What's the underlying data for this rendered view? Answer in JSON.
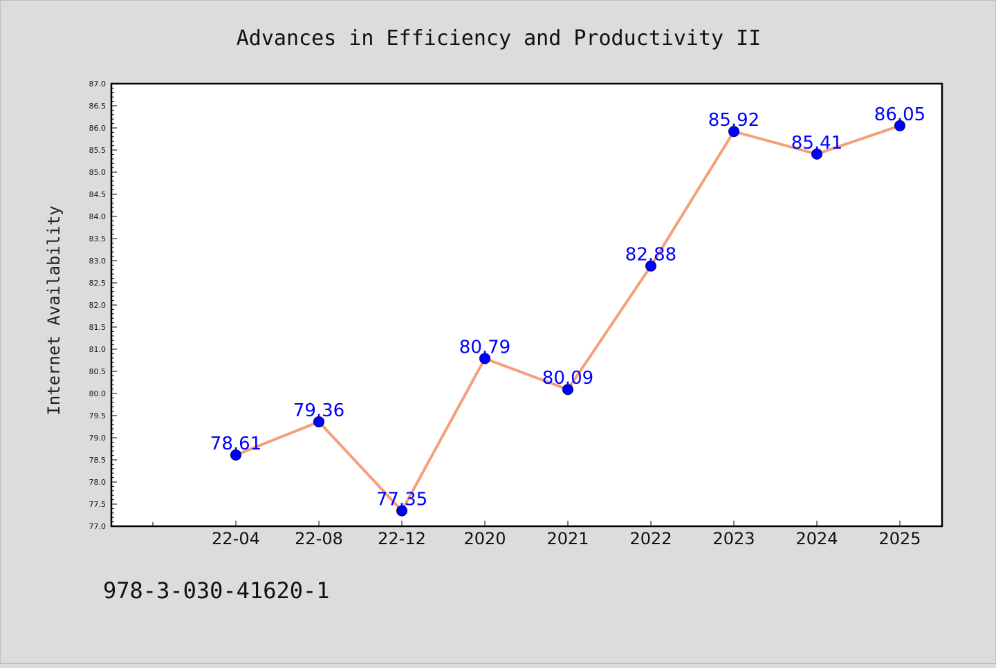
{
  "chart_data": {
    "type": "line",
    "title": "Advances in Efficiency and Productivity II",
    "xlabel": "",
    "ylabel": "Internet Availability",
    "categories": [
      "22-04",
      "22-08",
      "22-12",
      "2020",
      "2021",
      "2022",
      "2023",
      "2024",
      "2025"
    ],
    "series": [
      {
        "values": [
          78.61,
          79.36,
          77.35,
          80.79,
          80.09,
          82.88,
          85.92,
          85.41,
          86.05
        ],
        "labels": [
          "78.61",
          "79.36",
          "77.35",
          "80.79",
          "80.09",
          "82.88",
          "85.92",
          "85.41",
          "86.05"
        ]
      }
    ],
    "ylim": [
      77.0,
      87.0
    ],
    "yticks": [
      "77.0",
      "77.5",
      "78.0",
      "78.5",
      "79.0",
      "79.5",
      "80.0",
      "80.5",
      "81.0",
      "81.5",
      "82.0",
      "82.5",
      "83.0",
      "83.5",
      "84.0",
      "84.5",
      "85.0",
      "85.5",
      "86.0",
      "86.5",
      "87.0"
    ],
    "grid": false,
    "legend": "none",
    "line_color": "#f4a07a",
    "marker_color": "#0000ff",
    "label_color": "#0000ff"
  },
  "footnote": "978-3-030-41620-1"
}
